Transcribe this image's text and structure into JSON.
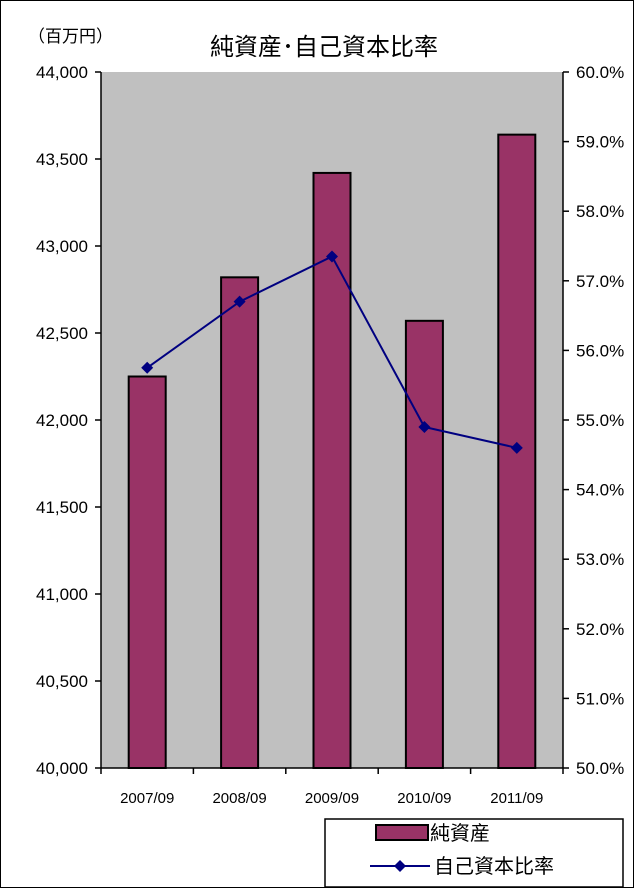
{
  "chart_data": {
    "type": "bar",
    "title": "純資産･自己資本比率",
    "unit_label": "（百万円）",
    "categories": [
      "2007/09",
      "2008/09",
      "2009/09",
      "2010/09",
      "2011/09"
    ],
    "series": [
      {
        "name": "純資産",
        "type": "bar",
        "axis": "left",
        "color": "#993366",
        "values": [
          42250,
          42820,
          43420,
          42570,
          43640
        ]
      },
      {
        "name": "自己資本比率",
        "type": "line",
        "axis": "right",
        "color": "#000080",
        "values": [
          55.75,
          56.7,
          57.35,
          54.9,
          54.6
        ]
      }
    ],
    "y_left": {
      "min": 40000,
      "max": 44000,
      "ticks": [
        "40,000",
        "40,500",
        "41,000",
        "41,500",
        "42,000",
        "42,500",
        "43,000",
        "43,500",
        "44,000"
      ]
    },
    "y_right": {
      "min": 50.0,
      "max": 60.0,
      "ticks": [
        "50.0%",
        "51.0%",
        "52.0%",
        "53.0%",
        "54.0%",
        "55.0%",
        "56.0%",
        "57.0%",
        "58.0%",
        "59.0%",
        "60.0%"
      ]
    },
    "plot_background": "#c0c0c0",
    "grid": false,
    "legend_position": "bottom-right"
  }
}
